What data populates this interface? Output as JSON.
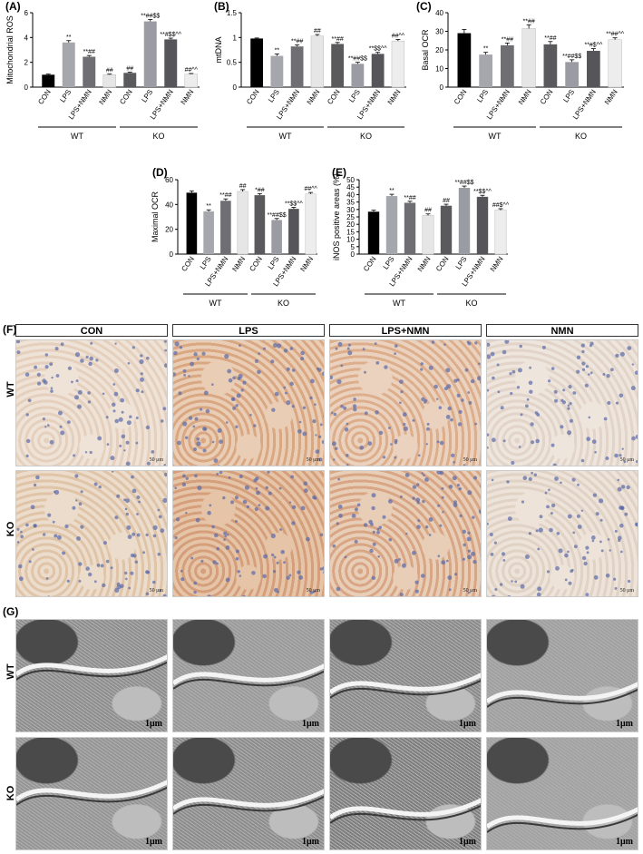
{
  "panel_labels": {
    "A": "(A)",
    "B": "(B)",
    "C": "(C)",
    "D": "(D)",
    "E": "(E)",
    "F": "(F)",
    "G": "(G)"
  },
  "group_labels": {
    "wt": "WT",
    "ko": "KO"
  },
  "colors": {
    "con": "#000000",
    "lps": "#a6a6ad",
    "lps_nmn": "#6f6f73",
    "nmn": "#e6e6e6",
    "ko_con": "#5a5a5c",
    "ko_lps": "#9b9ba4",
    "ko_lps_nmn": "#56565a",
    "ko_nmn": "#ededed"
  },
  "chart_data": [
    {
      "id": "A",
      "type": "bar",
      "ylabel": "Mitochondrial ROS",
      "ylim": [
        0,
        6
      ],
      "yticks": [
        0,
        2,
        4,
        6
      ],
      "categories": [
        "CON",
        "LPS",
        "LPS+NMN",
        "NMN",
        "CON",
        "LPS",
        "LPS+NMN",
        "NMN"
      ],
      "groups": [
        "WT",
        "KO"
      ],
      "values": [
        1.0,
        3.6,
        2.45,
        1.0,
        1.15,
        5.3,
        3.85,
        1.05
      ],
      "errors": [
        0.05,
        0.15,
        0.1,
        0.05,
        0.05,
        0.15,
        0.1,
        0.05
      ],
      "annotations": [
        "",
        "**",
        "**##",
        "##",
        "##",
        "**##$$",
        "**#$$^^",
        "##^^"
      ]
    },
    {
      "id": "B",
      "type": "bar",
      "ylabel": "mtDNA",
      "ylim": [
        0,
        1.5
      ],
      "yticks": [
        0.0,
        0.5,
        1.0,
        1.5
      ],
      "categories": [
        "CON",
        "LPS",
        "LPS+NMN",
        "NMN",
        "CON",
        "LPS",
        "LPS+NMN",
        "NMN"
      ],
      "groups": [
        "WT",
        "KO"
      ],
      "values": [
        0.98,
        0.63,
        0.82,
        1.03,
        0.87,
        0.47,
        0.67,
        0.93
      ],
      "errors": [
        0.01,
        0.04,
        0.03,
        0.03,
        0.03,
        0.03,
        0.03,
        0.03
      ],
      "annotations": [
        "",
        "**",
        "**##",
        "##",
        "**##",
        "**##$$",
        "**$$^^",
        "##^^"
      ]
    },
    {
      "id": "C",
      "type": "bar",
      "ylabel": "Basal OCR",
      "ylim": [
        0,
        40
      ],
      "yticks": [
        0,
        10,
        20,
        30,
        40
      ],
      "categories": [
        "CON",
        "LPS",
        "LPS+NMN",
        "NMN",
        "CON",
        "LPS",
        "LPS+NMN",
        "NMN"
      ],
      "groups": [
        "WT",
        "KO"
      ],
      "values": [
        29.0,
        17.5,
        22.5,
        31.5,
        23.0,
        13.5,
        19.5,
        25.5
      ],
      "errors": [
        2.0,
        1.2,
        1.2,
        2.0,
        1.5,
        1.2,
        1.2,
        1.0
      ],
      "annotations": [
        "",
        "**",
        "**##",
        "**##",
        "**##",
        "**##$$",
        "**#$^^",
        "**##^^"
      ]
    },
    {
      "id": "D",
      "type": "bar",
      "ylabel": "Maximal OCR",
      "ylim": [
        0,
        60
      ],
      "yticks": [
        0,
        20,
        40,
        60
      ],
      "categories": [
        "CON",
        "LPS",
        "LPS+NMN",
        "NMN",
        "CON",
        "LPS",
        "LPS+NMN",
        "NMN"
      ],
      "groups": [
        "WT",
        "KO"
      ],
      "values": [
        49.5,
        34.5,
        43.0,
        50.5,
        47.5,
        27.5,
        36.5,
        48.5
      ],
      "errors": [
        1.5,
        1.2,
        1.5,
        1.5,
        1.2,
        1.2,
        1.2,
        1.2
      ],
      "annotations": [
        "",
        "**",
        "**##",
        "##",
        "*##",
        "**##$$",
        "**$$^^",
        "##^^"
      ]
    },
    {
      "id": "E",
      "type": "bar",
      "ylabel": "iNOS positive areas (%)",
      "ylim": [
        0,
        50
      ],
      "yticks": [
        0,
        5,
        10,
        15,
        20,
        25,
        30,
        35,
        40,
        45,
        50
      ],
      "categories": [
        "CON",
        "LPS",
        "LPS+NMN",
        "NMN",
        "CON",
        "LPS",
        "LPS+NMN",
        "NMN"
      ],
      "groups": [
        "WT",
        "KO"
      ],
      "values": [
        28.5,
        39.0,
        34.5,
        26.0,
        32.5,
        44.5,
        38.5,
        29.5
      ],
      "errors": [
        1.0,
        1.2,
        1.0,
        1.0,
        1.0,
        1.2,
        1.0,
        1.0
      ],
      "annotations": [
        "",
        "**",
        "**##",
        "##",
        "##",
        "**##$$",
        "**$$^^",
        "##$^^"
      ]
    }
  ],
  "ihc": {
    "columns": [
      "CON",
      "LPS",
      "LPS+NMN",
      "NMN"
    ],
    "rows": [
      "WT",
      "KO"
    ],
    "scale_bar": "50 μm"
  },
  "em": {
    "rows": [
      "WT",
      "KO"
    ],
    "scale_bar": "1μm"
  }
}
